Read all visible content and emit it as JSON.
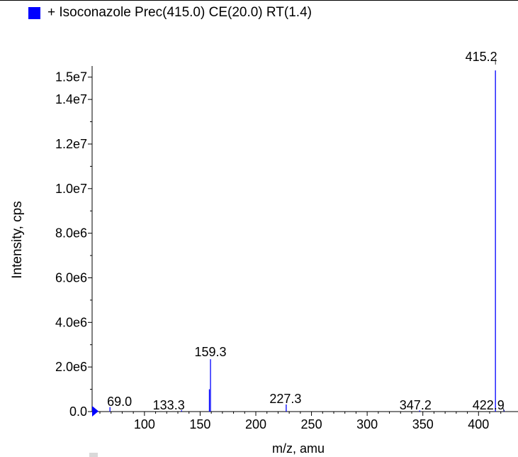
{
  "legend": {
    "label": "+ Isoconazole Prec(415.0) CE(20.0) RT(1.4)",
    "color": "#0000ff"
  },
  "chart_data": {
    "type": "bar",
    "title": "+ Isoconazole Prec(415.0) CE(20.0) RT(1.4)",
    "xlabel": "m/z, amu",
    "ylabel": "Intensity, cps",
    "xlim": [
      53,
      424
    ],
    "ylim": [
      0,
      15500000
    ],
    "x_ticks": [
      100,
      150,
      200,
      250,
      300,
      350,
      400
    ],
    "y_ticks": [
      {
        "value": 0,
        "label": "0.0"
      },
      {
        "value": 2000000,
        "label": "2.0e6"
      },
      {
        "value": 4000000,
        "label": "4.0e6"
      },
      {
        "value": 6000000,
        "label": "6.0e6"
      },
      {
        "value": 8000000,
        "label": "8.0e6"
      },
      {
        "value": 10000000,
        "label": "1.0e7"
      },
      {
        "value": 12000000,
        "label": "1.2e7"
      },
      {
        "value": 14000000,
        "label": "1.4e7"
      },
      {
        "value": 15000000,
        "label": "1.5e7"
      }
    ],
    "series": [
      {
        "color": "#0000ff",
        "peaks": [
          {
            "mz": 69.0,
            "intensity": 200000,
            "label": "69.0"
          },
          {
            "mz": 133.3,
            "intensity": 60000,
            "label": "133.3"
          },
          {
            "mz": 158.3,
            "intensity": 1000000,
            "label": ""
          },
          {
            "mz": 159.3,
            "intensity": 2350000,
            "label": "159.3"
          },
          {
            "mz": 227.3,
            "intensity": 320000,
            "label": "227.3"
          },
          {
            "mz": 347.2,
            "intensity": 50000,
            "label": "347.2"
          },
          {
            "mz": 415.2,
            "intensity": 15300000,
            "label": "415.2"
          },
          {
            "mz": 422.9,
            "intensity": 80000,
            "label": "422.9"
          }
        ]
      }
    ],
    "grid": false
  }
}
